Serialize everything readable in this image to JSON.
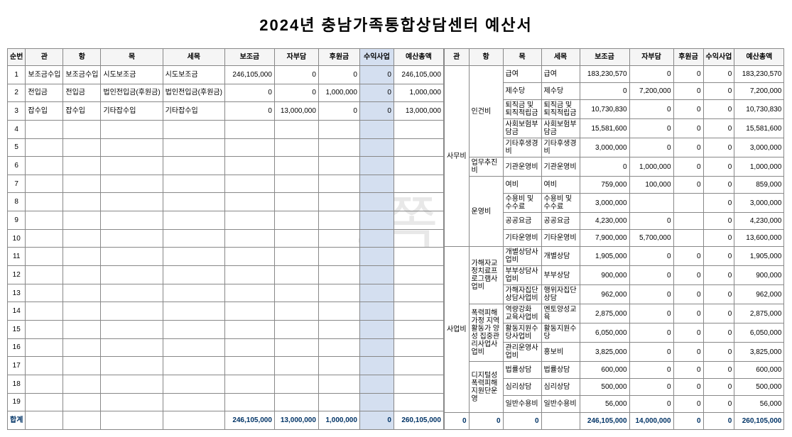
{
  "title": "2024년  충남가족통합상담센터 예산서",
  "watermark": "1쪽",
  "headers_left": [
    "순번",
    "관",
    "항",
    "목",
    "세목",
    "보조금",
    "자부담",
    "후원금",
    "수익사업",
    "예산총액"
  ],
  "headers_right": [
    "관",
    "항",
    "목",
    "세목",
    "보조금",
    "자부담",
    "후원금",
    "수익사업",
    "예산총액"
  ],
  "left_rows": [
    {
      "no": "1",
      "gwan": "보조금수입",
      "hang": "보조금수입",
      "mok": "시도보조금",
      "semok": "시도보조금",
      "bojo": "246,105,000",
      "jabu": "0",
      "huwon": "0",
      "suik": "0",
      "total": "246,105,000"
    },
    {
      "no": "2",
      "gwan": "전입금",
      "hang": "전입금",
      "mok": "법인전입금(후원금)",
      "semok": "법인전입금(후원금)",
      "bojo": "0",
      "jabu": "0",
      "huwon": "1,000,000",
      "suik": "0",
      "total": "1,000,000"
    },
    {
      "no": "3",
      "gwan": "잡수입",
      "hang": "잡수입",
      "mok": "기타잡수입",
      "semok": "기타잡수입",
      "bojo": "0",
      "jabu": "13,000,000",
      "huwon": "0",
      "suik": "0",
      "total": "13,000,000"
    },
    {
      "no": "4"
    },
    {
      "no": "5"
    },
    {
      "no": "6"
    },
    {
      "no": "7"
    },
    {
      "no": "8"
    },
    {
      "no": "9"
    },
    {
      "no": "10"
    },
    {
      "no": "11"
    },
    {
      "no": "12"
    },
    {
      "no": "13"
    },
    {
      "no": "14"
    },
    {
      "no": "15"
    },
    {
      "no": "16"
    },
    {
      "no": "17"
    },
    {
      "no": "18"
    },
    {
      "no": "19"
    }
  ],
  "left_total": {
    "label": "합계",
    "bojo": "246,105,000",
    "jabu": "13,000,000",
    "huwon": "1,000,000",
    "suik": "0",
    "total": "260,105,000"
  },
  "right_rows": [
    {
      "gwan": "사무비",
      "hang": "인건비",
      "mok": "급여",
      "semok": "급여",
      "bojo": "183,230,570",
      "jabu": "0",
      "huwon": "0",
      "suik": "0",
      "total": "183,230,570"
    },
    {
      "mok": "제수당",
      "semok": "제수당",
      "bojo": "0",
      "jabu": "7,200,000",
      "huwon": "0",
      "suik": "0",
      "total": "7,200,000"
    },
    {
      "mok": "퇴직금 및 퇴직적립금",
      "semok": "퇴직금 및 퇴직적립금",
      "bojo": "10,730,830",
      "jabu": "0",
      "huwon": "0",
      "suik": "0",
      "total": "10,730,830"
    },
    {
      "mok": "사회보험부담금",
      "semok": "사회보험부담금",
      "bojo": "15,581,600",
      "jabu": "0",
      "huwon": "0",
      "suik": "0",
      "total": "15,581,600"
    },
    {
      "mok": "기타후생경비",
      "semok": "기타후생경비",
      "bojo": "3,000,000",
      "jabu": "0",
      "huwon": "0",
      "suik": "0",
      "total": "3,000,000"
    },
    {
      "hang": "업무추진비",
      "mok": "기관운영비",
      "semok": "기관운영비",
      "bojo": "0",
      "jabu": "1,000,000",
      "huwon": "0",
      "suik": "0",
      "total": "1,000,000"
    },
    {
      "hang": "운영비",
      "mok": "여비",
      "semok": "여비",
      "bojo": "759,000",
      "jabu": "100,000",
      "huwon": "0",
      "suik": "0",
      "total": "859,000"
    },
    {
      "mok": "수용비 및 수수료",
      "semok": "수용비 및 수수료",
      "bojo": "3,000,000",
      "jabu": "",
      "huwon": "",
      "suik": "0",
      "total": "3,000,000"
    },
    {
      "mok": "공공요금",
      "semok": "공공요금",
      "bojo": "4,230,000",
      "jabu": "0",
      "huwon": "",
      "suik": "0",
      "total": "4,230,000"
    },
    {
      "mok": "기타운영비",
      "semok": "기타운영비",
      "bojo": "7,900,000",
      "jabu": "5,700,000",
      "huwon": "",
      "suik": "0",
      "total": "13,600,000"
    },
    {
      "gwan": "사업비",
      "hang": "가해자교정치료프로그램사업비",
      "mok": "개별상담사업비",
      "semok": "개별상담",
      "bojo": "1,905,000",
      "jabu": "0",
      "huwon": "0",
      "suik": "0",
      "total": "1,905,000"
    },
    {
      "mok": "부부상담사업비",
      "semok": "부부상담",
      "bojo": "900,000",
      "jabu": "0",
      "huwon": "0",
      "suik": "0",
      "total": "900,000"
    },
    {
      "mok": "가해자집단상담사업비",
      "semok": "행위자집단상담",
      "bojo": "962,000",
      "jabu": "0",
      "huwon": "0",
      "suik": "0",
      "total": "962,000"
    },
    {
      "hang": "폭력피해가정 지역활동가 양성 집중관리사업사업비",
      "mok": "역량강화 교육사업비",
      "semok": "멘토양성교육",
      "bojo": "2,875,000",
      "jabu": "0",
      "huwon": "0",
      "suik": "0",
      "total": "2,875,000"
    },
    {
      "mok": "활동지원수당사업비",
      "semok": "활동지원수당",
      "bojo": "6,050,000",
      "jabu": "0",
      "huwon": "0",
      "suik": "0",
      "total": "6,050,000"
    },
    {
      "mok": "관리운영사업비",
      "semok": "홍보비",
      "bojo": "3,825,000",
      "jabu": "0",
      "huwon": "0",
      "suik": "0",
      "total": "3,825,000"
    },
    {
      "hang": "디지털성폭력피해지원단운영",
      "mok": "법률상담",
      "semok": "법률상담",
      "bojo": "600,000",
      "jabu": "0",
      "huwon": "0",
      "suik": "0",
      "total": "600,000"
    },
    {
      "mok": "심리상담",
      "semok": "심리상담",
      "bojo": "500,000",
      "jabu": "0",
      "huwon": "0",
      "suik": "0",
      "total": "500,000"
    },
    {
      "mok": "일반수용비",
      "semok": "일반수용비",
      "bojo": "56,000",
      "jabu": "0",
      "huwon": "0",
      "suik": "0",
      "total": "56,000"
    }
  ],
  "right_total": {
    "gwan": "0",
    "hang": "0",
    "mok": "0",
    "semok": "",
    "bojo": "246,105,000",
    "jabu": "14,000,000",
    "huwon": "0",
    "suik": "0",
    "total": "260,105,000"
  },
  "col_widths_left": {
    "no": 25,
    "gwan": 38,
    "hang": 38,
    "mok": 42,
    "semok": 42,
    "bojo": 70,
    "jabu": 62,
    "huwon": 58,
    "suik": 48,
    "total": 70
  },
  "col_widths_right": {
    "gwan": 28,
    "hang": 48,
    "mok": 54,
    "semok": 54,
    "bojo": 70,
    "jabu": 62,
    "huwon": 42,
    "suik": 42,
    "total": 70
  }
}
